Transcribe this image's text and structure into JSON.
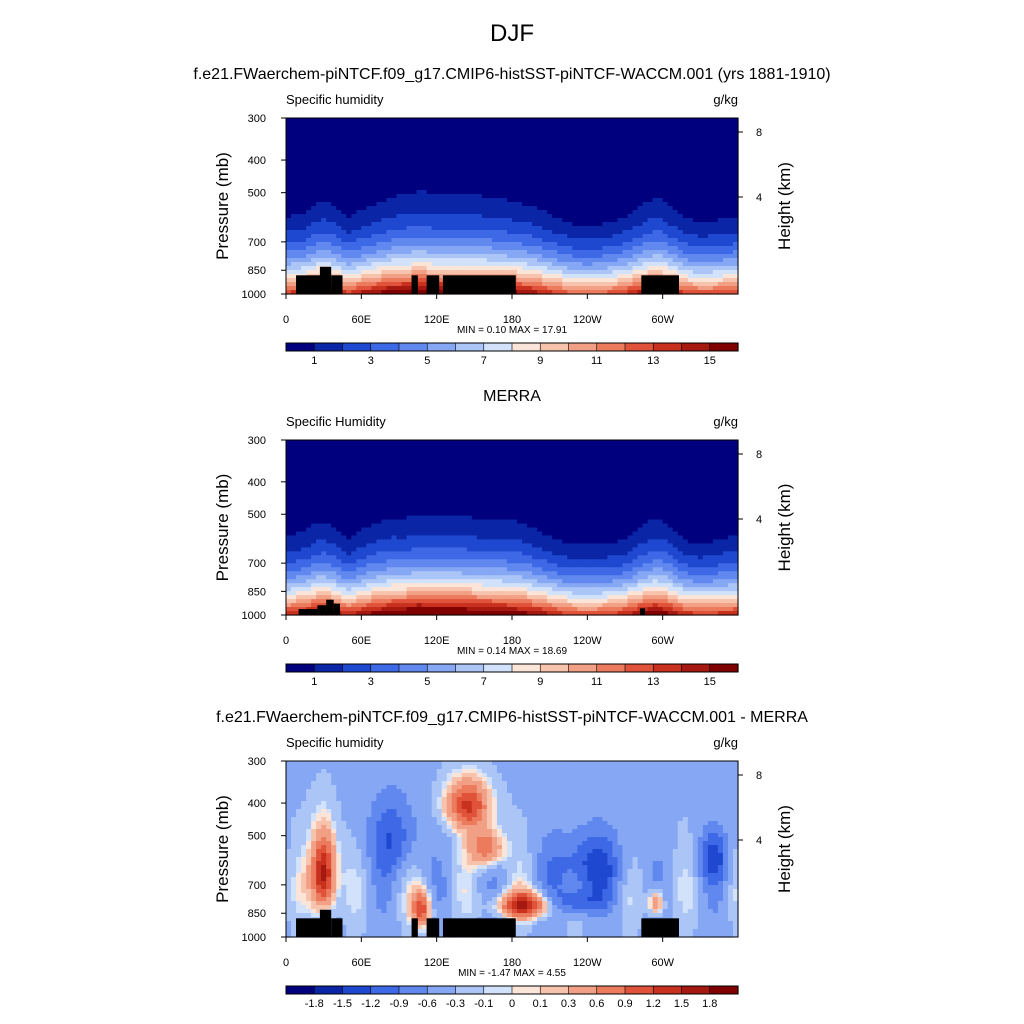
{
  "main_title": "DJF",
  "chart_data": [
    {
      "type": "heatmap",
      "title": "f.e21.FWaerchem-piNTCF.f09_g17.CMIP6-histSST-piNTCF-WACCM.001 (yrs 1881-1910)",
      "variable": "Specific humidity",
      "units": "g/kg",
      "ylabel": "Pressure (mb)",
      "y2label": "Height (km)",
      "x_ticks": [
        "0",
        "60E",
        "120E",
        "180",
        "120W",
        "60W"
      ],
      "x_tick_values": [
        0,
        60,
        120,
        180,
        240,
        300
      ],
      "xlim": [
        0,
        360
      ],
      "y_ticks": [
        "300",
        "400",
        "500",
        "700",
        "850",
        "1000"
      ],
      "y_tick_values": [
        300,
        400,
        500,
        700,
        850,
        1000
      ],
      "ylim": [
        1000,
        300
      ],
      "y_scale": "log",
      "y2_ticks": [
        "8",
        "4"
      ],
      "y2_tick_values": [
        8,
        4
      ],
      "min": "0.10",
      "max": "17.91",
      "stats_text": "MIN =   0.10  MAX =  17.91",
      "colorbar_labels": [
        "1",
        "3",
        "5",
        "7",
        "9",
        "11",
        "13",
        "15"
      ],
      "colorbar_colors": [
        "#00007f",
        "#0a26a6",
        "#1f48d0",
        "#3e69e6",
        "#6088ee",
        "#86a7f3",
        "#abc5f7",
        "#d2e2fb",
        "#fbe4d8",
        "#f7c3ad",
        "#f2a085",
        "#ec7b5d",
        "#e0533a",
        "#c9311f",
        "#a51911",
        "#800000"
      ],
      "terrain": [
        {
          "lon": [
            8,
            30
          ],
          "p": 880
        },
        {
          "lon": [
            27,
            36
          ],
          "p": 830
        },
        {
          "lon": [
            36,
            45
          ],
          "p": 880
        },
        {
          "lon": [
            100,
            105
          ],
          "p": 880
        },
        {
          "lon": [
            112,
            122
          ],
          "p": 880
        },
        {
          "lon": [
            125,
            183
          ],
          "p": 880
        },
        {
          "lon": [
            283,
            313
          ],
          "p": 880
        }
      ]
    },
    {
      "type": "heatmap",
      "title": "MERRA",
      "variable": "Specific Humidity",
      "units": "g/kg",
      "ylabel": "Pressure (mb)",
      "y2label": "Height (km)",
      "x_ticks": [
        "0",
        "60E",
        "120E",
        "180",
        "120W",
        "60W"
      ],
      "x_tick_values": [
        0,
        60,
        120,
        180,
        240,
        300
      ],
      "xlim": [
        0,
        360
      ],
      "y_ticks": [
        "300",
        "400",
        "500",
        "700",
        "850",
        "1000"
      ],
      "y_tick_values": [
        300,
        400,
        500,
        700,
        850,
        1000
      ],
      "ylim": [
        1000,
        300
      ],
      "y_scale": "log",
      "y2_ticks": [
        "8",
        "4"
      ],
      "y2_tick_values": [
        8,
        4
      ],
      "min": "0.14",
      "max": "18.69",
      "stats_text": "MIN =   0.14  MAX =  18.69",
      "colorbar_labels": [
        "1",
        "3",
        "5",
        "7",
        "9",
        "11",
        "13",
        "15"
      ],
      "colorbar_colors": [
        "#00007f",
        "#0a26a6",
        "#1f48d0",
        "#3e69e6",
        "#6088ee",
        "#86a7f3",
        "#abc5f7",
        "#d2e2fb",
        "#fbe4d8",
        "#f7c3ad",
        "#f2a085",
        "#ec7b5d",
        "#e0533a",
        "#c9311f",
        "#a51911",
        "#800000"
      ],
      "terrain": [
        {
          "lon": [
            10,
            25
          ],
          "p": 960
        },
        {
          "lon": [
            25,
            32
          ],
          "p": 935
        },
        {
          "lon": [
            32,
            38
          ],
          "p": 900
        },
        {
          "lon": [
            38,
            43
          ],
          "p": 925
        },
        {
          "lon": [
            282,
            286
          ],
          "p": 955
        }
      ]
    },
    {
      "type": "heatmap",
      "title": "f.e21.FWaerchem-piNTCF.f09_g17.CMIP6-histSST-piNTCF-WACCM.001 - MERRA",
      "variable": "Specific humidity",
      "units": "g/kg",
      "ylabel": "Pressure (mb)",
      "y2label": "Height (km)",
      "x_ticks": [
        "0",
        "60E",
        "120E",
        "180",
        "120W",
        "60W"
      ],
      "x_tick_values": [
        0,
        60,
        120,
        180,
        240,
        300
      ],
      "xlim": [
        0,
        360
      ],
      "y_ticks": [
        "300",
        "400",
        "500",
        "700",
        "850",
        "1000"
      ],
      "y_tick_values": [
        300,
        400,
        500,
        700,
        850,
        1000
      ],
      "ylim": [
        1000,
        300
      ],
      "y_scale": "log",
      "y2_ticks": [
        "8",
        "4"
      ],
      "y2_tick_values": [
        8,
        4
      ],
      "min": "-1.47",
      "max": "4.55",
      "stats_text": "MIN =  -1.47  MAX =   4.55",
      "colorbar_labels": [
        "-1.8",
        "-1.5",
        "-1.2",
        "-0.9",
        "-0.6",
        "-0.3",
        "-0.1",
        "0",
        "0.1",
        "0.3",
        "0.6",
        "0.9",
        "1.2",
        "1.5",
        "1.8"
      ],
      "colorbar_colors": [
        "#00007f",
        "#0a26a6",
        "#1f48d0",
        "#3e69e6",
        "#6088ee",
        "#86a7f3",
        "#abc5f7",
        "#d2e2fb",
        "#fbe4d8",
        "#f7c3ad",
        "#f2a085",
        "#ec7b5d",
        "#e0533a",
        "#c9311f",
        "#a51911",
        "#800000"
      ],
      "terrain": [
        {
          "lon": [
            8,
            30
          ],
          "p": 880
        },
        {
          "lon": [
            27,
            36
          ],
          "p": 830
        },
        {
          "lon": [
            36,
            45
          ],
          "p": 880
        },
        {
          "lon": [
            100,
            105
          ],
          "p": 880
        },
        {
          "lon": [
            112,
            122
          ],
          "p": 880
        },
        {
          "lon": [
            125,
            183
          ],
          "p": 880
        },
        {
          "lon": [
            283,
            313
          ],
          "p": 880
        }
      ]
    }
  ]
}
